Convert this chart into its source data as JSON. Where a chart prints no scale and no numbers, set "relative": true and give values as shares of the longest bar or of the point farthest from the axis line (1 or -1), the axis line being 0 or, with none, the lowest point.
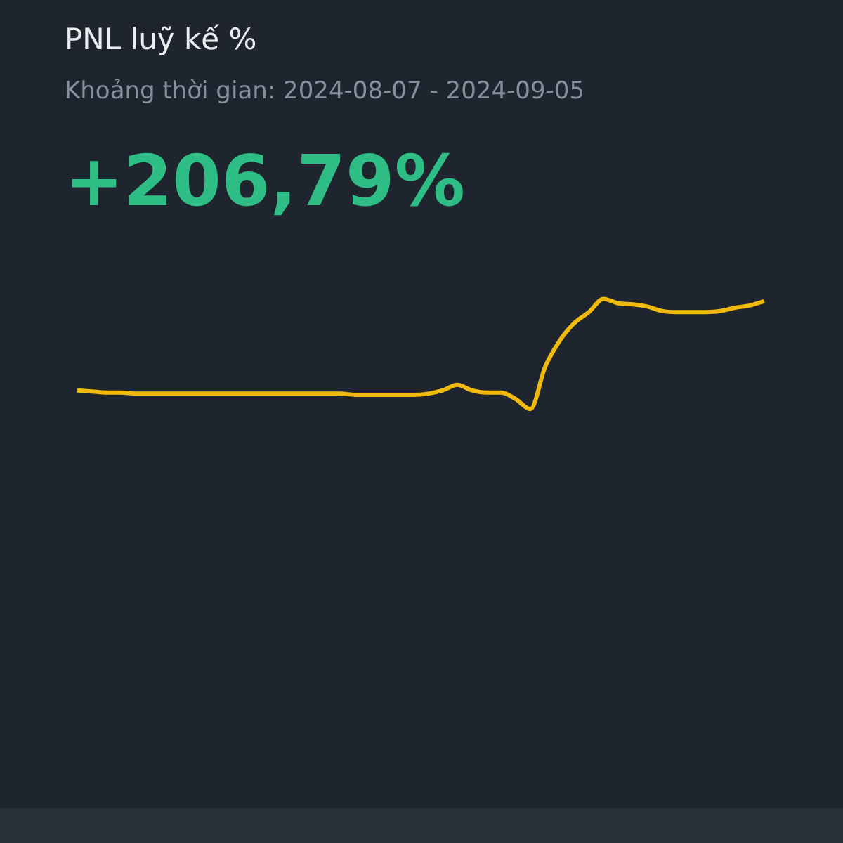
{
  "chart_data": {
    "type": "line",
    "title": "PNL luỹ kế %",
    "subtitle": "Khoảng thời gian: 2024-08-07 - 2024-09-05",
    "annotations": [
      "+206,79%"
    ],
    "relative": true,
    "legend": false,
    "marker": "none",
    "categories": [
      null,
      null,
      null,
      null,
      null,
      null,
      null,
      null,
      null,
      null,
      null,
      null,
      null,
      null,
      null,
      null,
      null,
      null,
      null,
      null,
      null,
      null,
      null,
      null,
      null,
      null,
      null,
      null,
      null,
      null,
      null,
      null,
      null,
      null,
      null,
      null,
      null,
      null,
      null,
      null,
      null,
      null,
      null,
      null,
      null,
      null,
      null,
      null
    ],
    "series": [
      {
        "color": "#f0b90b",
        "values": [
          0.17,
          0.16,
          0.15,
          0.15,
          0.14,
          0.14,
          0.14,
          0.14,
          0.14,
          0.14,
          0.14,
          0.14,
          0.14,
          0.14,
          0.14,
          0.14,
          0.14,
          0.14,
          0.14,
          0.13,
          0.13,
          0.13,
          0.13,
          0.13,
          0.14,
          0.17,
          0.22,
          0.17,
          0.15,
          0.15,
          0.09,
          0,
          0.38,
          0.62,
          0.78,
          0.88,
          1,
          0.96,
          0.95,
          0.93,
          0.89,
          0.88,
          0.88,
          0.88,
          0.89,
          0.92,
          0.94,
          0.98
        ]
      }
    ]
  }
}
